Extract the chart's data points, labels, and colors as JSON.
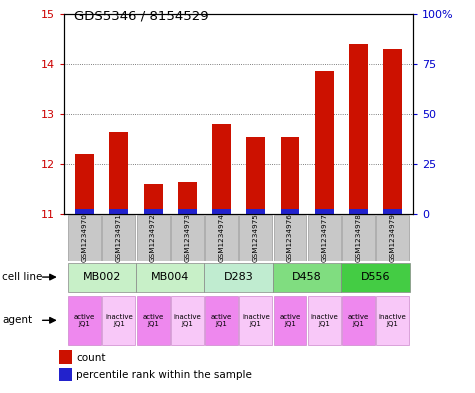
{
  "title": "GDS5346 / 8154529",
  "samples": [
    "GSM1234970",
    "GSM1234971",
    "GSM1234972",
    "GSM1234973",
    "GSM1234974",
    "GSM1234975",
    "GSM1234976",
    "GSM1234977",
    "GSM1234978",
    "GSM1234979"
  ],
  "red_values": [
    12.2,
    12.65,
    11.6,
    11.65,
    12.8,
    12.55,
    12.55,
    13.85,
    14.4,
    14.3
  ],
  "blue_values": [
    0.025,
    0.025,
    0.025,
    0.025,
    0.025,
    0.025,
    0.025,
    0.025,
    0.025,
    0.025
  ],
  "y_min": 11,
  "y_max": 15,
  "y_ticks_left": [
    11,
    12,
    13,
    14,
    15
  ],
  "y_ticks_right": [
    0,
    25,
    50,
    75,
    100
  ],
  "cell_lines": [
    {
      "label": "MB002",
      "span": [
        0,
        2
      ],
      "color": "#c8f0c8"
    },
    {
      "label": "MB004",
      "span": [
        2,
        4
      ],
      "color": "#c8f0c8"
    },
    {
      "label": "D283",
      "span": [
        4,
        6
      ],
      "color": "#c0ecd0"
    },
    {
      "label": "D458",
      "span": [
        6,
        8
      ],
      "color": "#80dd80"
    },
    {
      "label": "D556",
      "span": [
        8,
        10
      ],
      "color": "#44cc44"
    }
  ],
  "agents": [
    {
      "label": "active\nJQ1",
      "color": "#ee88ee"
    },
    {
      "label": "inactive\nJQ1",
      "color": "#f8c8f8"
    },
    {
      "label": "active\nJQ1",
      "color": "#ee88ee"
    },
    {
      "label": "inactive\nJQ1",
      "color": "#f8c8f8"
    },
    {
      "label": "active\nJQ1",
      "color": "#ee88ee"
    },
    {
      "label": "inactive\nJQ1",
      "color": "#f8c8f8"
    },
    {
      "label": "active\nJQ1",
      "color": "#ee88ee"
    },
    {
      "label": "inactive\nJQ1",
      "color": "#f8c8f8"
    },
    {
      "label": "active\nJQ1",
      "color": "#ee88ee"
    },
    {
      "label": "inactive\nJQ1",
      "color": "#f8c8f8"
    }
  ],
  "bar_width": 0.55,
  "left_axis_color": "#cc0000",
  "right_axis_color": "#0000cc",
  "red_bar_color": "#cc1100",
  "blue_bar_color": "#2222cc",
  "grid_color": "#555555",
  "bg_color": "#ffffff",
  "sample_row_color": "#c8c8c8",
  "legend_red": "count",
  "legend_blue": "percentile rank within the sample",
  "label_cell_line": "cell line",
  "label_agent": "agent"
}
